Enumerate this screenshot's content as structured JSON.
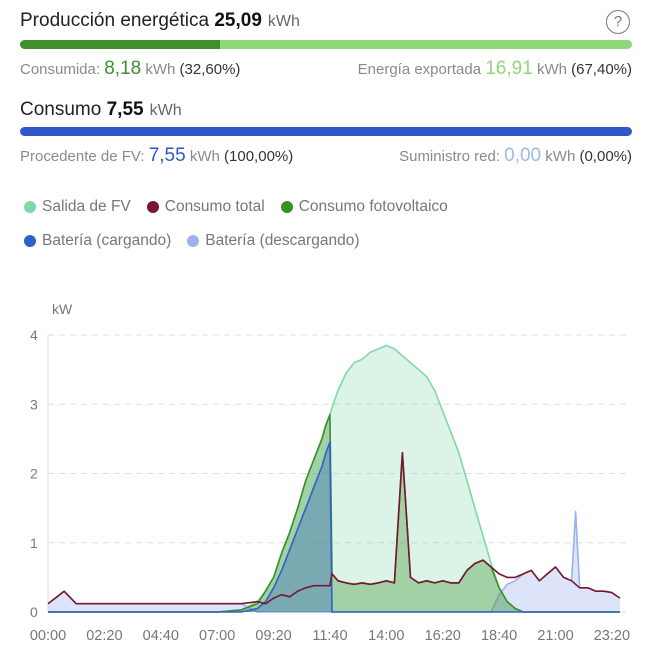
{
  "production": {
    "label": "Producción energética",
    "value": "25,09",
    "unit": "kWh",
    "consumed_label": "Consumida:",
    "consumed_value": "8,18",
    "consumed_unit": "kWh",
    "consumed_pct": "(32,60%)",
    "exported_label": "Energía exportada",
    "exported_value": "16,91",
    "exported_unit": "kWh",
    "exported_pct": "(67,40%)",
    "consumed_fraction": 0.326,
    "color_consumed": "#3f8f2f",
    "color_exported": "#8ed87a"
  },
  "consumption": {
    "label": "Consumo",
    "value": "7,55",
    "unit": "kWh",
    "pv_label": "Procedente de FV:",
    "pv_value": "7,55",
    "pv_unit": "kWh",
    "pv_pct": "(100,00%)",
    "grid_label": "Suministro red:",
    "grid_value": "0,00",
    "grid_unit": "kWh",
    "grid_pct": "(0,00%)",
    "pv_fraction": 1.0,
    "color": "#2f57c8"
  },
  "help_icon": "question-circle-icon",
  "legend": [
    {
      "label": "Salida de FV",
      "color": "#7fd8a8"
    },
    {
      "label": "Consumo total",
      "color": "#7a1630"
    },
    {
      "label": "Consumo fotovoltaico",
      "color": "#3a8f2a"
    },
    {
      "label": "Batería (cargando)",
      "color": "#2d62c9"
    },
    {
      "label": "Batería (descargando)",
      "color": "#9fb0ea"
    }
  ],
  "chart_data": {
    "type": "area",
    "ylabel": "kW",
    "ylim": [
      0,
      4
    ],
    "yticks": [
      "0",
      "1",
      "2",
      "3",
      "4"
    ],
    "xticks": [
      "00:00",
      "02:20",
      "04:40",
      "07:00",
      "09:20",
      "11:40",
      "14:00",
      "16:20",
      "18:40",
      "21:00",
      "23:20"
    ],
    "grid": true,
    "x": [
      "00:00",
      "00:40",
      "01:10",
      "02:20",
      "03:30",
      "04:40",
      "05:50",
      "07:00",
      "08:00",
      "08:40",
      "09:00",
      "09:20",
      "09:40",
      "10:00",
      "10:20",
      "10:40",
      "11:00",
      "11:20",
      "11:30",
      "11:40",
      "11:45",
      "12:00",
      "12:20",
      "12:40",
      "13:00",
      "13:20",
      "13:40",
      "14:00",
      "14:20",
      "14:40",
      "15:00",
      "15:20",
      "15:40",
      "16:00",
      "16:20",
      "16:40",
      "17:00",
      "17:20",
      "17:40",
      "18:00",
      "18:20",
      "18:40",
      "19:00",
      "19:20",
      "19:40",
      "20:00",
      "20:20",
      "20:40",
      "21:00",
      "21:20",
      "21:40",
      "21:50",
      "22:00",
      "22:20",
      "22:40",
      "23:00",
      "23:20",
      "23:40"
    ],
    "series": [
      {
        "name": "Salida de FV",
        "values": [
          0,
          0,
          0,
          0,
          0,
          0,
          0,
          0,
          0.03,
          0.15,
          0.3,
          0.5,
          0.85,
          1.15,
          1.5,
          1.9,
          2.2,
          2.5,
          2.7,
          2.85,
          2.95,
          3.2,
          3.45,
          3.6,
          3.65,
          3.75,
          3.8,
          3.85,
          3.8,
          3.7,
          3.6,
          3.5,
          3.4,
          3.2,
          2.9,
          2.6,
          2.3,
          1.9,
          1.5,
          1.1,
          0.7,
          0.35,
          0.15,
          0.05,
          0,
          0,
          0,
          0,
          0,
          0,
          0,
          0,
          0,
          0,
          0,
          0,
          0,
          0
        ]
      },
      {
        "name": "Consumo total",
        "values": [
          0.12,
          0.3,
          0.12,
          0.12,
          0.12,
          0.12,
          0.12,
          0.12,
          0.12,
          0.15,
          0.12,
          0.2,
          0.25,
          0.22,
          0.3,
          0.35,
          0.38,
          0.38,
          0.38,
          0.38,
          0.55,
          0.45,
          0.42,
          0.4,
          0.42,
          0.4,
          0.42,
          0.45,
          0.42,
          2.3,
          0.5,
          0.42,
          0.45,
          0.42,
          0.45,
          0.42,
          0.42,
          0.6,
          0.7,
          0.75,
          0.65,
          0.55,
          0.5,
          0.5,
          0.55,
          0.6,
          0.45,
          0.55,
          0.65,
          0.5,
          0.45,
          0.4,
          0.35,
          0.35,
          0.3,
          0.3,
          0.28,
          0.2
        ]
      },
      {
        "name": "Consumo fotovoltaico",
        "values": [
          0,
          0,
          0,
          0,
          0,
          0,
          0,
          0,
          0.03,
          0.12,
          0.3,
          0.5,
          0.85,
          1.15,
          1.5,
          1.9,
          2.2,
          2.5,
          2.7,
          2.85,
          0.55,
          0.45,
          0.42,
          0.4,
          0.42,
          0.4,
          0.42,
          0.45,
          0.42,
          2.3,
          0.5,
          0.42,
          0.45,
          0.42,
          0.45,
          0.42,
          0.42,
          0.6,
          0.7,
          0.75,
          0.65,
          0.35,
          0.15,
          0.05,
          0,
          0,
          0,
          0,
          0,
          0,
          0,
          0,
          0,
          0,
          0,
          0,
          0,
          0
        ]
      },
      {
        "name": "Batería (cargando)",
        "values": [
          0,
          0,
          0,
          0,
          0,
          0,
          0,
          0,
          0,
          0.05,
          0.15,
          0.35,
          0.6,
          0.9,
          1.2,
          1.5,
          1.8,
          2.1,
          2.3,
          2.45,
          0,
          0,
          0,
          0,
          0,
          0,
          0,
          0,
          0,
          0,
          0,
          0,
          0,
          0,
          0,
          0,
          0,
          0,
          0,
          0,
          0,
          0,
          0,
          0,
          0,
          0,
          0,
          0,
          0,
          0,
          0,
          0,
          0,
          0,
          0,
          0,
          0,
          0
        ]
      },
      {
        "name": "Batería (descargando)",
        "values": [
          0.12,
          0.3,
          0.12,
          0.12,
          0.12,
          0.12,
          0.12,
          0.12,
          0.12,
          0,
          0,
          0,
          0,
          0,
          0,
          0,
          0,
          0,
          0,
          0,
          0,
          0,
          0,
          0,
          0,
          0,
          0,
          0,
          0,
          0,
          0,
          0,
          0,
          0,
          0,
          0,
          0,
          0,
          0,
          0,
          0,
          0.25,
          0.4,
          0.45,
          0.55,
          0.6,
          0.45,
          0.55,
          0.65,
          0.5,
          0.45,
          1.45,
          0.35,
          0.35,
          0.3,
          0.3,
          0.28,
          0.2
        ]
      }
    ]
  }
}
